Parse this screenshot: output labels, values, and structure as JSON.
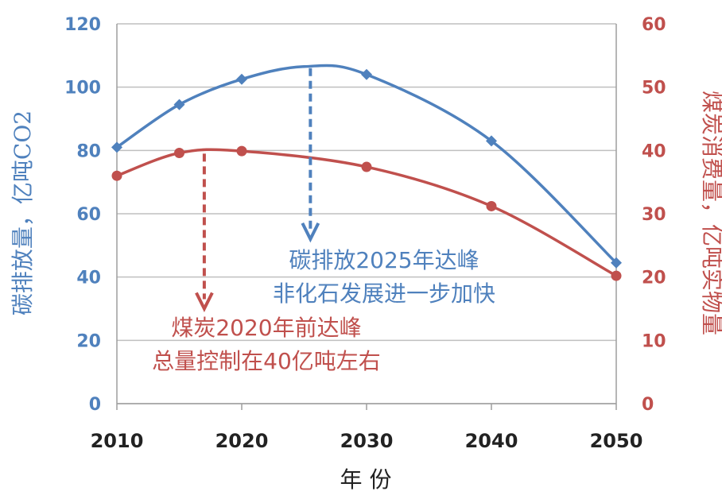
{
  "chart_data": {
    "type": "line",
    "xlabel": "年 份",
    "ylabel_left": "碳排放量，亿吨CO2",
    "ylabel_right": "煤炭消费量，亿吨实物量",
    "x_ticks": [
      "2010",
      "2020",
      "2030",
      "2040",
      "2050"
    ],
    "xlim": [
      2010,
      2050
    ],
    "ylim_left": [
      0,
      120
    ],
    "ylim_right": [
      0,
      60
    ],
    "yticks_left": [
      "0",
      "20",
      "40",
      "60",
      "80",
      "100",
      "120"
    ],
    "yticks_right": [
      "0",
      "10",
      "20",
      "30",
      "40",
      "50",
      "60"
    ],
    "grid": "horizontal",
    "series": [
      {
        "axis": "left",
        "color": "#4f81bd",
        "x": [
          2010,
          2015,
          2020,
          2025,
          2030,
          2040,
          2050
        ],
        "y": [
          81,
          94.5,
          102.5,
          106.5,
          104,
          83,
          44.5
        ],
        "marker_x": [
          2010,
          2015,
          2020,
          2030,
          2040,
          2050
        ],
        "marker_y": [
          81,
          94.5,
          102.5,
          104,
          83,
          44.5
        ]
      },
      {
        "axis": "right",
        "color": "#c0504d",
        "x": [
          2010,
          2015,
          2020,
          2030,
          2040,
          2050
        ],
        "y": [
          36,
          39.6,
          39.9,
          37.4,
          31.2,
          20.2
        ],
        "marker_x": [
          2010,
          2015,
          2020,
          2030,
          2040,
          2050
        ],
        "marker_y": [
          36,
          39.6,
          39.9,
          37.4,
          31.2,
          20.2
        ]
      }
    ],
    "annotations": [
      {
        "color": "#4f81bd",
        "arrow_x": 2025.5,
        "arrow_from_left": 106,
        "arrow_to_left": 52,
        "lines": [
          "碳排放2025年达峰",
          "非化石发展进一步加快"
        ]
      },
      {
        "color": "#c0504d",
        "arrow_x": 2017,
        "arrow_from_left": 79,
        "arrow_to_left": 30,
        "lines": [
          "煤炭2020年前达峰",
          "总量控制在40亿吨左右"
        ]
      }
    ]
  }
}
